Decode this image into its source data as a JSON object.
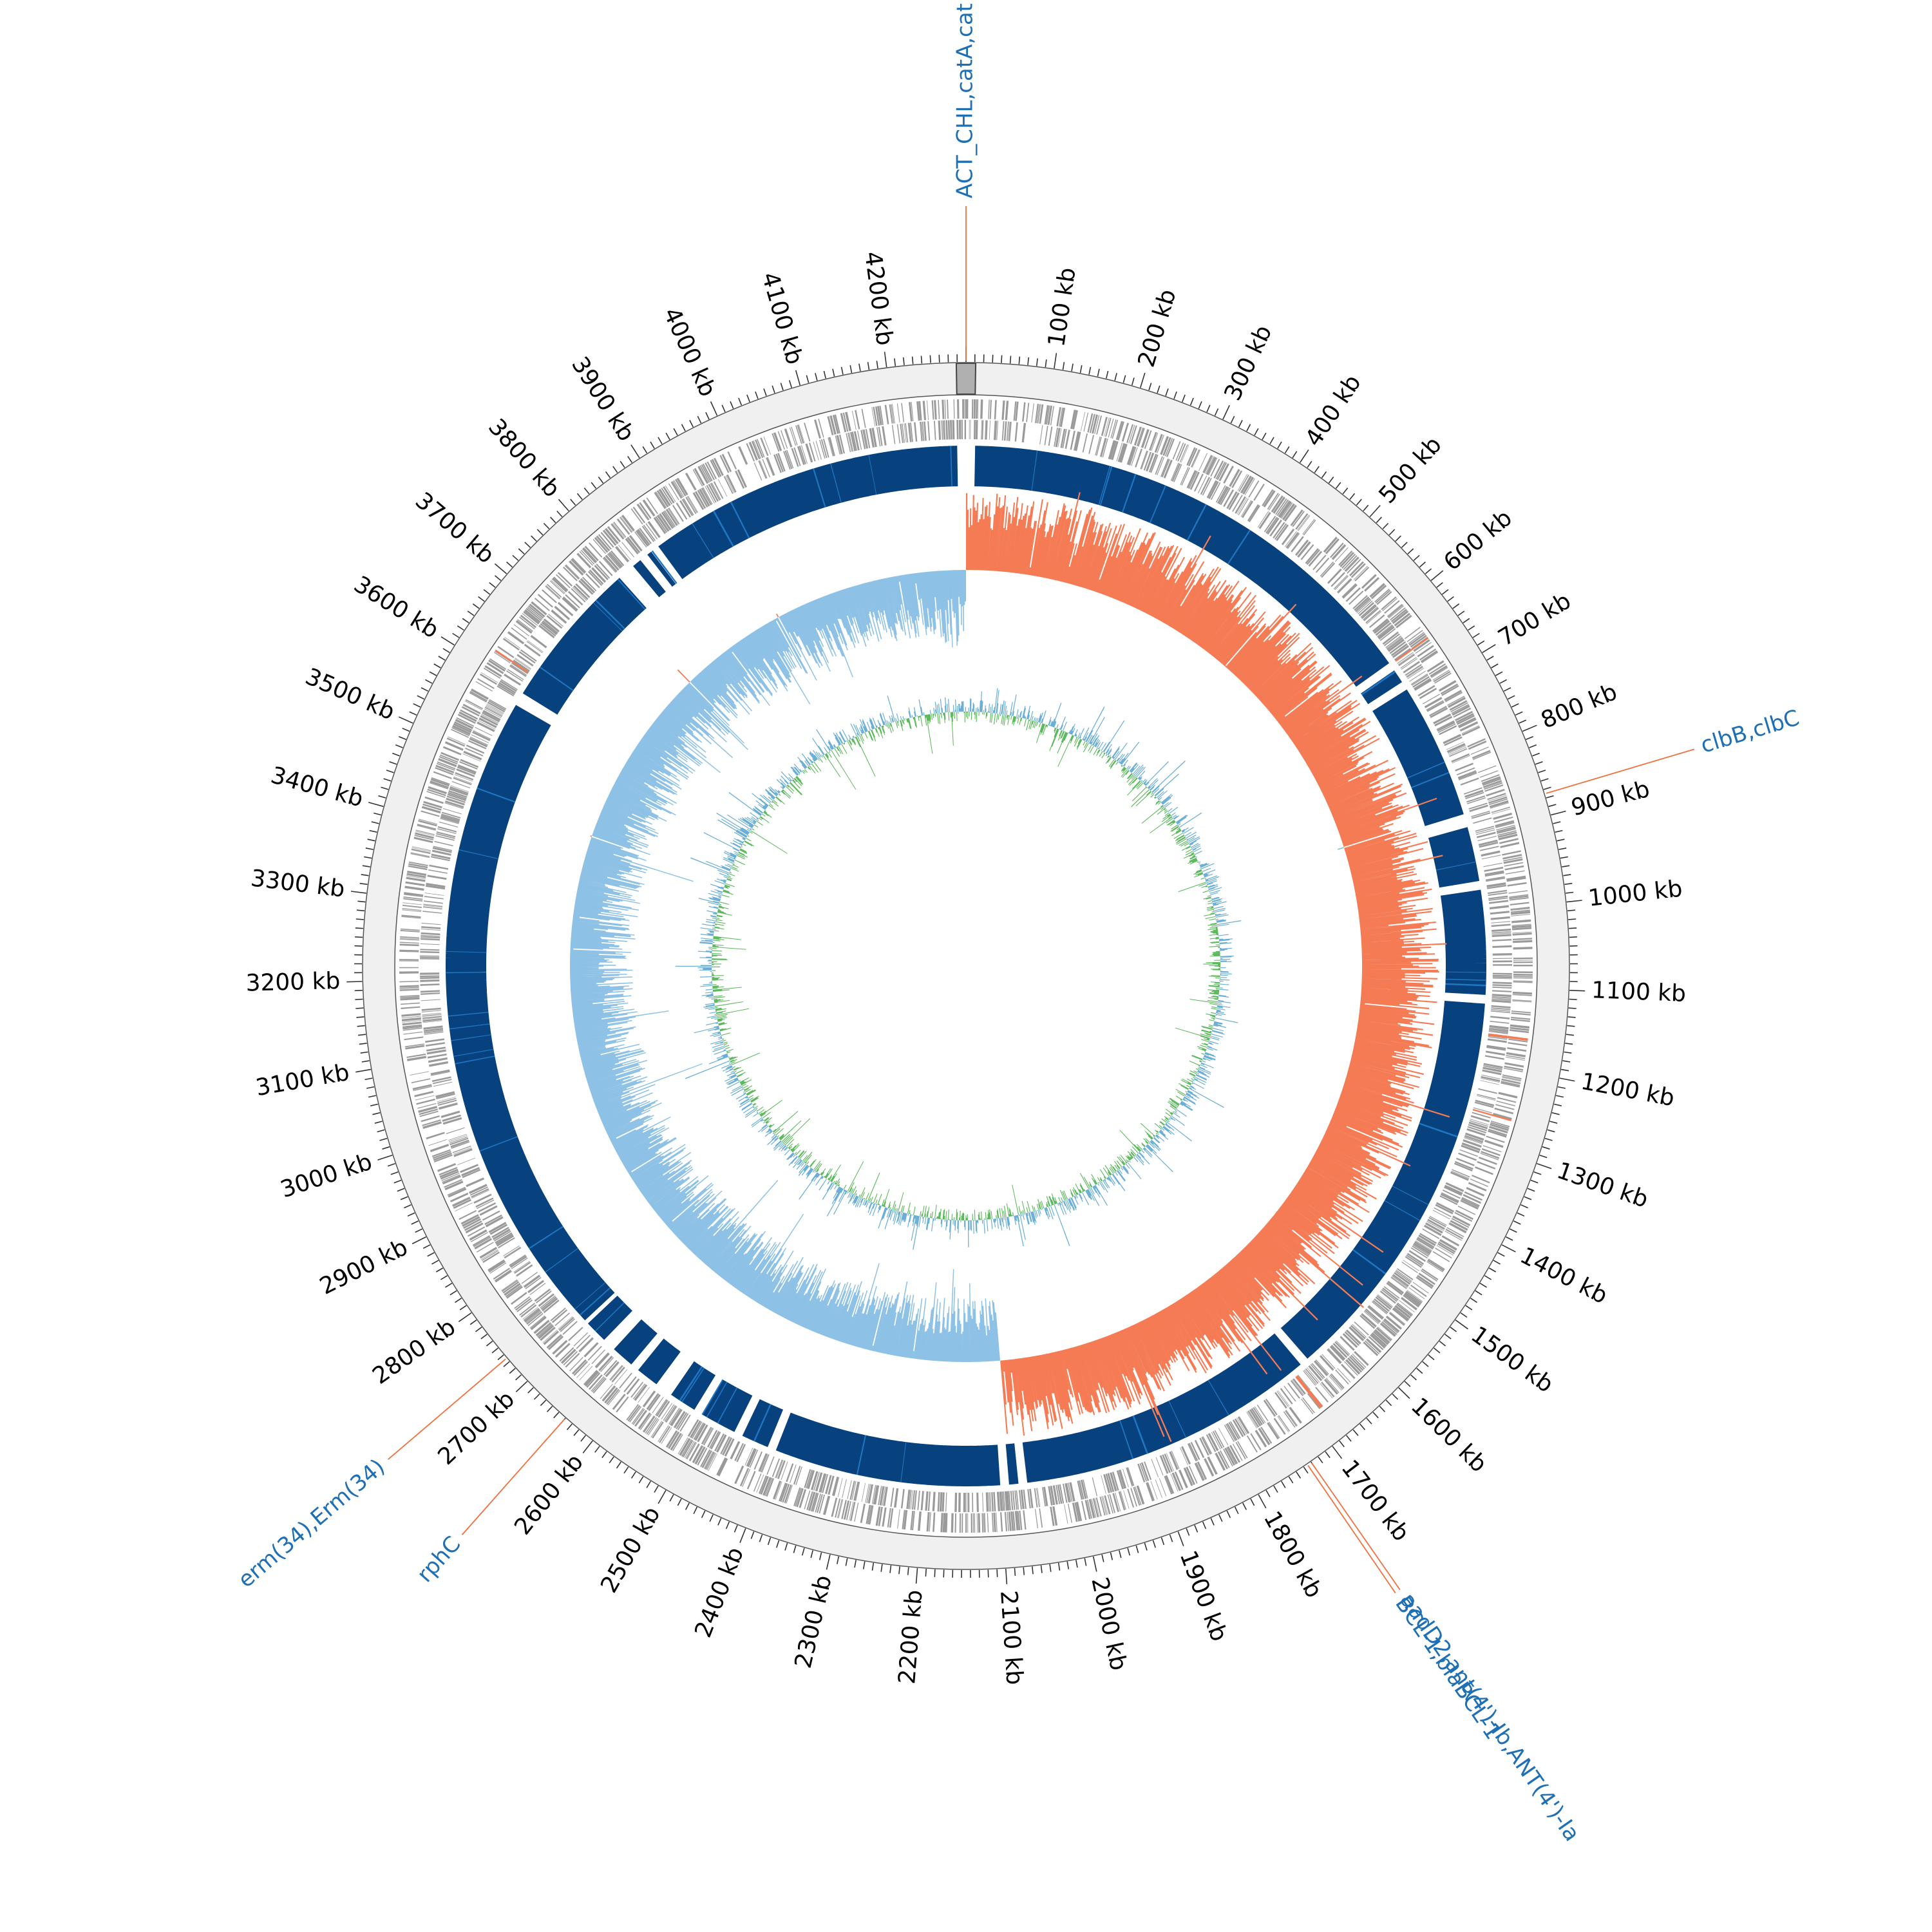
{
  "genome_map": {
    "genome_length_kb": 4290,
    "tick_labels": [
      "100 kb",
      "200 kb",
      "300 kb",
      "400 kb",
      "500 kb",
      "600 kb",
      "700 kb",
      "800 kb",
      "900 kb",
      "1000 kb",
      "1100 kb",
      "1200 kb",
      "1300 kb",
      "1400 kb",
      "1500 kb",
      "1600 kb",
      "1700 kb",
      "1800 kb",
      "1900 kb",
      "2000 kb",
      "2100 kb",
      "2200 kb",
      "2300 kb",
      "2400 kb",
      "2500 kb",
      "2600 kb",
      "2700 kb",
      "2800 kb",
      "2900 kb",
      "3000 kb",
      "3100 kb",
      "3200 kb",
      "3300 kb",
      "3400 kb",
      "3500 kb",
      "3600 kb",
      "3700 kb",
      "3800 kb",
      "3900 kb",
      "4000 kb",
      "4100 kb",
      "4200 kb"
    ],
    "gene_annotations": [
      {
        "label": "ACT_CHL,catA,cat",
        "position_kb": 0
      },
      {
        "label": "clbB,clbC",
        "position_kb": 875
      },
      {
        "label": "aadD2,ant(4')-Ib,ANT(4')-Ia",
        "position_kb": 1730
      },
      {
        "label": "BCL-1,blaBCL-1",
        "position_kb": 1735
      },
      {
        "label": "rphC",
        "position_kb": 2640
      },
      {
        "label": "erm(34),Erm(34)",
        "position_kb": 2735
      }
    ],
    "gc_skew_switch_kb": [
      0,
      2085
    ],
    "colors": {
      "backbone": "#f0f0f0",
      "backbone_stroke": "#999999",
      "cds": "#9a9a9a",
      "blast_hit": "#08427e",
      "blast_hit_light": "#1f77c4",
      "gc_skew_positive": "#f57b55",
      "gc_skew_negative": "#8ec1e6",
      "gc_content_high": "#5eb95e",
      "gc_content_low": "#6baed6",
      "label_text": "#1f6fb5",
      "label_line": "#f0703e",
      "origin_box": "#b0b0b0"
    }
  }
}
